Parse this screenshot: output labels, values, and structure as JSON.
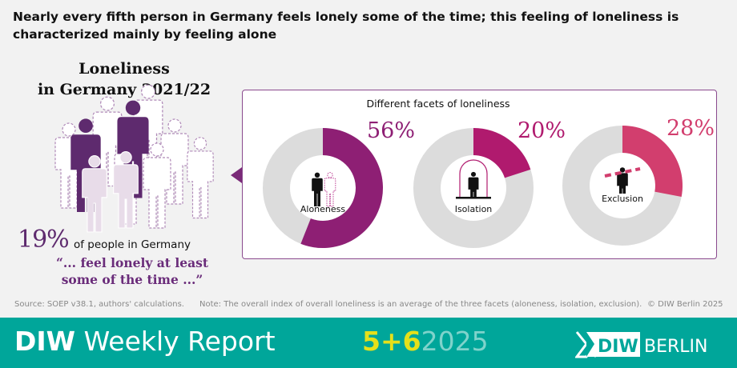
{
  "headline": "Nearly every fifth person in Germany feels lonely some of the time; this feeling of loneliness is characterized mainly by feeling alone",
  "left": {
    "title_line1": "Loneliness",
    "title_line2": "in Germany 2021/22",
    "share": "19%",
    "share_value": 19,
    "share_text": "of people in Germany",
    "quote_line1": "“... feel lonely at least",
    "quote_line2": "some of the time ...”"
  },
  "chart_data": {
    "type": "pie",
    "title": "Different facets of loneliness",
    "series": [
      {
        "name": "Aloneness",
        "value": 56,
        "label": "56%",
        "color": "#8e1f74",
        "icon": "two-people-icon"
      },
      {
        "name": "Isolation",
        "value": 20,
        "label": "20%",
        "color": "#b01a6e",
        "icon": "person-in-arch-icon"
      },
      {
        "name": "Exclusion",
        "value": 28,
        "label": "28%",
        "color": "#d23e6e",
        "icon": "person-excluded-icon"
      }
    ],
    "remainder_color": "#dcdcdc"
  },
  "notes": {
    "source": "Source: SOEP v38.1, authors' calculations.",
    "note": "Note: The overall index of overall loneliness is an average of the three facets (aloneness, isolation, exclusion).",
    "copyright": "© DIW Berlin 2025"
  },
  "footer": {
    "brand_bold": "DIW",
    "brand_rest": "Weekly Report",
    "issue_bold": "5+6",
    "year": "2025",
    "logo_text_1": "DIW",
    "logo_text_2": "BERLIN",
    "bg_color": "#00a69a"
  }
}
